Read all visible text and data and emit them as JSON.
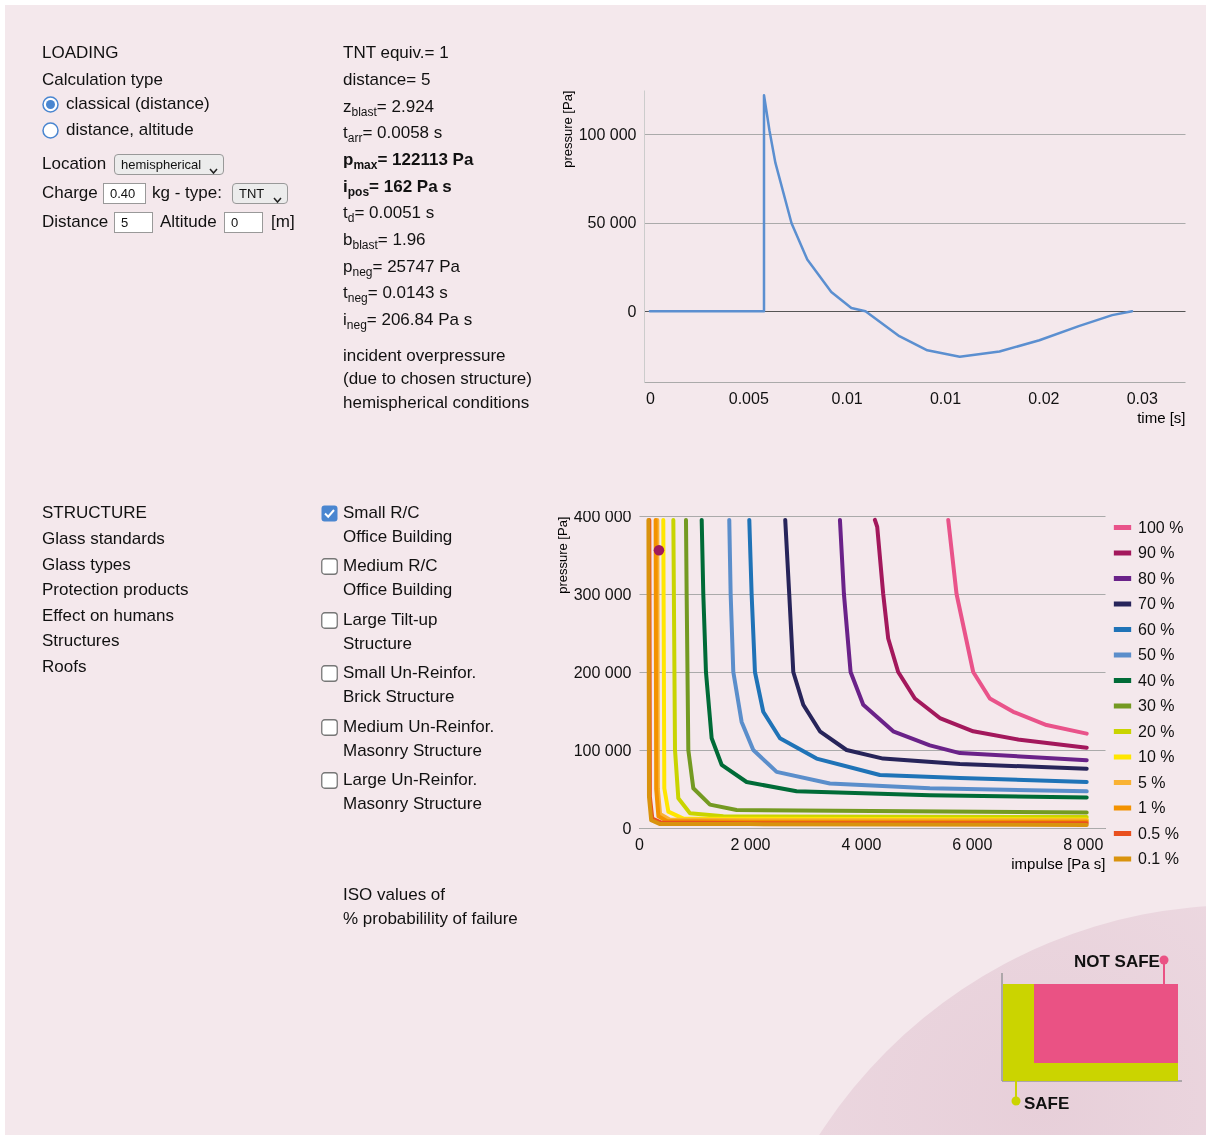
{
  "chart_data": [
    {
      "type": "other",
      "title": "LOADING",
      "annotations": [
        "Calculation type",
        "classical (distance)",
        "distance, altitude",
        "Location",
        "hemispherical",
        "Charge",
        "0.40",
        "kg - type:",
        "TNT",
        "Distance",
        "5",
        "Altitude",
        "0",
        "[m]"
      ]
    },
    {
      "type": "other",
      "annotations": [
        "TNT equiv.= 1",
        "distance= 5",
        "z$_{blast}$= 2.924",
        "t$_{arr}$= 0.0058 s",
        "p$_{max}$= 122113 Pa",
        "i$_{pos}$= 162 Pa s",
        "t$_{d}$= 0.0051 s",
        "b$_{blast}$= 1.96",
        "p$_{neg}$= 25747 Pa",
        "t$_{neg}$= 0.0143 s",
        "i$_{neg}$= 206.84 Pa s",
        "incident overpressure",
        "(due to chosen structure)",
        "hemispherical conditions"
      ]
    },
    {
      "type": "line",
      "ylabel": "pressure [Pa]",
      "xlabel": "time [s]",
      "grid": "y",
      "xlim": [
        -0.0003,
        0.0272
      ],
      "ylim": [
        -40000,
        125000
      ],
      "xticks": [
        0,
        0.005,
        0.01,
        {
          "value": 0.015,
          "label": "0.01"
        },
        0.02,
        {
          "value": 0.025,
          "label": "0.03"
        }
      ],
      "yticks": [
        0,
        {
          "value": 50000,
          "label": "50 000"
        },
        {
          "value": 100000,
          "label": "100 000"
        }
      ],
      "series": [
        {
          "color": "#5b8fd0",
          "x": [
            0,
            0.0058,
            0.0058,
            0.00608,
            0.00638,
            0.0072,
            0.008,
            0.00922,
            0.01024,
            0.01096,
            0.01268,
            0.0141,
            0.01575,
            0.01777,
            0.0198,
            0.0218,
            0.0235,
            0.02451
          ],
          "values": [
            0,
            0,
            122000,
            102000,
            83800,
            49700,
            29200,
            10900,
            1800,
            0,
            -14100,
            -22100,
            -25700,
            -22800,
            -16400,
            -8400,
            -2200,
            0
          ]
        }
      ]
    },
    {
      "type": "other",
      "title": "STRUCTURE",
      "annotations": [
        "Glass standards",
        "Glass types",
        "Protection products",
        "Effect on humans",
        "Structures",
        "Roofs"
      ]
    },
    {
      "type": "other",
      "annotations": [
        "Small R/C",
        "Office Building",
        "Medium R/C",
        "Office Building",
        "Large Tilt-up",
        "Structure",
        "Small Un-Reinfor.",
        "Brick Structure",
        "Medium Un-Reinfor.",
        "Masonry Structure",
        "Large Un-Reinfor.",
        "Masonry Structure",
        "ISO values of",
        "% probabilility of failure"
      ]
    },
    {
      "type": "line",
      "ylabel": "pressure [Pa]",
      "xlabel": "impulse [Pa s]",
      "grid": "y",
      "legend": "right",
      "xlim": [
        0,
        8400
      ],
      "ylim": [
        0,
        400000
      ],
      "xticks": [
        0,
        {
          "value": 2000,
          "label": "2 000"
        },
        {
          "value": 4000,
          "label": "4 000"
        },
        {
          "value": 6000,
          "label": "6 000"
        },
        {
          "value": 8000,
          "label": "8 000"
        }
      ],
      "yticks": [
        0,
        {
          "value": 100000,
          "label": "100 000"
        },
        {
          "value": 200000,
          "label": "200 000"
        },
        {
          "value": 300000,
          "label": "300 000"
        },
        {
          "value": 400000,
          "label": "400 000"
        }
      ],
      "series": [
        {
          "name": "100 %",
          "color": "#e9538a",
          "x": [
            5574,
            5724,
            6024,
            6324,
            6745,
            7346,
            8070
          ],
          "values": [
            395000,
            300000,
            200000,
            166000,
            149000,
            132000,
            121000
          ]
        },
        {
          "name": "90 %",
          "color": "#a3185c",
          "x": [
            4252,
            4294,
            4402,
            4492,
            4672,
            4973,
            5423,
            6024,
            6865,
            8070
          ],
          "values": [
            395000,
            386000,
            300000,
            243000,
            200000,
            166000,
            141000,
            124000,
            113000,
            103000
          ]
        },
        {
          "name": "80 %",
          "color": "#6a2289",
          "x": [
            3622,
            3694,
            3814,
            4042,
            4582,
            5243,
            5784,
            8070
          ],
          "values": [
            395000,
            300000,
            200000,
            158000,
            124000,
            106000,
            96000,
            87000
          ]
        },
        {
          "name": "70 %",
          "color": "#27245a",
          "x": [
            2636,
            2708,
            2781,
            2961,
            3261,
            3742,
            4400,
            5784,
            8070
          ],
          "values": [
            395000,
            300000,
            200000,
            158000,
            124000,
            100000,
            89000,
            82000,
            76000
          ]
        },
        {
          "name": "60 %",
          "color": "#1f73b7",
          "x": [
            1988,
            2030,
            2090,
            2240,
            2541,
            3201,
            4342,
            5784,
            8070
          ],
          "values": [
            395000,
            300000,
            200000,
            149000,
            115000,
            89000,
            68000,
            64000,
            59000
          ]
        },
        {
          "name": "50 %",
          "color": "#5b8ecb",
          "x": [
            1627,
            1652,
            1700,
            1850,
            2060,
            2481,
            3441,
            5243,
            8070
          ],
          "values": [
            395000,
            300000,
            200000,
            136000,
            100000,
            72000,
            57000,
            51000,
            47000
          ]
        },
        {
          "name": "40 %",
          "color": "#006b37",
          "x": [
            1130,
            1159,
            1207,
            1310,
            1490,
            1940,
            2841,
            5243,
            8070
          ],
          "values": [
            395000,
            300000,
            200000,
            115000,
            81000,
            59000,
            47000,
            42000,
            39000
          ]
        },
        {
          "name": "30 %",
          "color": "#749a22",
          "x": [
            847,
            859,
            889,
            979,
            1279,
            1760,
            8070
          ],
          "values": [
            395000,
            300000,
            100000,
            51000,
            30000,
            23000,
            20000
          ]
        },
        {
          "name": "20 %",
          "color": "#c9d400",
          "x": [
            619,
            649,
            709,
            919,
            1520,
            8070
          ],
          "values": [
            395000,
            100000,
            38000,
            19000,
            15000,
            14000
          ]
        },
        {
          "name": "10 %",
          "color": "#ffe600",
          "x": [
            438,
            456,
            529,
            799,
            2000,
            8070
          ],
          "values": [
            395000,
            51000,
            21000,
            12000,
            12000,
            11000
          ]
        },
        {
          "name": "5 %",
          "color": "#f9b233",
          "x": [
            330,
            340,
            380,
            550,
            2000,
            8070
          ],
          "values": [
            395000,
            50000,
            18000,
            11000,
            10000,
            10000
          ]
        },
        {
          "name": "1 %",
          "color": "#f39200",
          "x": [
            300,
            310,
            350,
            500,
            2000,
            8070
          ],
          "values": [
            395000,
            50000,
            15000,
            9000,
            8000,
            8000
          ]
        },
        {
          "name": "0.5 %",
          "color": "#e9501e",
          "x": [
            186,
            196,
            240,
            400,
            2000,
            8070
          ],
          "values": [
            395000,
            40000,
            12000,
            7000,
            6000,
            6000
          ]
        },
        {
          "name": "0.1 %",
          "color": "#d9930d",
          "x": [
            170,
            180,
            220,
            380,
            2000,
            8070
          ],
          "values": [
            395000,
            40000,
            10000,
            5000,
            5000,
            4000
          ]
        },
        {
          "type": "scatter",
          "color": "#a0195a",
          "x": [
            360
          ],
          "values": [
            356000
          ]
        }
      ]
    },
    {
      "type": "other",
      "annotations": [
        "NOT SAFE",
        "SAFE"
      ]
    }
  ]
}
